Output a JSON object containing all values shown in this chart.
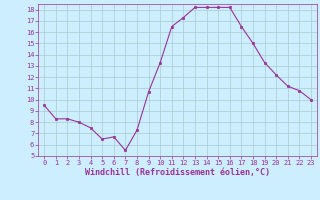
{
  "x": [
    0,
    1,
    2,
    3,
    4,
    5,
    6,
    7,
    8,
    9,
    10,
    11,
    12,
    13,
    14,
    15,
    16,
    17,
    18,
    19,
    20,
    21,
    22,
    23
  ],
  "y": [
    9.5,
    8.3,
    8.3,
    8.0,
    7.5,
    6.5,
    6.7,
    5.5,
    7.3,
    10.7,
    13.3,
    16.5,
    17.3,
    18.2,
    18.2,
    18.2,
    18.2,
    16.5,
    15.0,
    13.3,
    12.2,
    11.2,
    10.8,
    10.0
  ],
  "line_color": "#993399",
  "marker": "s",
  "marker_size": 1.8,
  "bg_color": "#cceeff",
  "grid_color": "#aacccc",
  "xlabel": "Windchill (Refroidissement éolien,°C)",
  "xlim": [
    -0.5,
    23.5
  ],
  "ylim": [
    5,
    18.5
  ],
  "xticks": [
    0,
    1,
    2,
    3,
    4,
    5,
    6,
    7,
    8,
    9,
    10,
    11,
    12,
    13,
    14,
    15,
    16,
    17,
    18,
    19,
    20,
    21,
    22,
    23
  ],
  "yticks": [
    5,
    6,
    7,
    8,
    9,
    10,
    11,
    12,
    13,
    14,
    15,
    16,
    17,
    18
  ],
  "tick_color": "#993399",
  "tick_fontsize": 5.0,
  "xlabel_fontsize": 6.0,
  "linewidth": 0.8
}
